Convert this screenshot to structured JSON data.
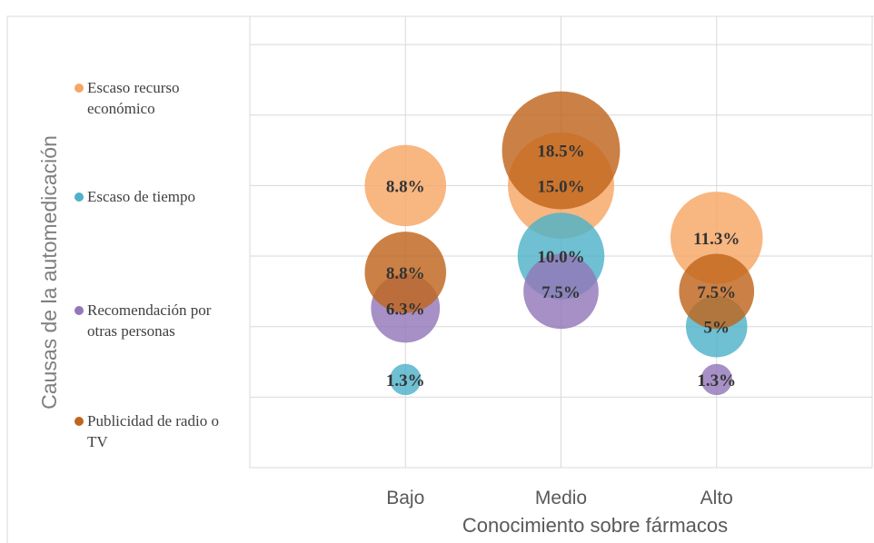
{
  "chart_data": {
    "type": "bubble",
    "x_label": "Conocimiento sobre fármacos",
    "y_label": "Causas de la automedicación",
    "categories": [
      "Bajo",
      "Medio",
      "Alto"
    ],
    "ylim": [
      0,
      6.4
    ],
    "yticks": [
      0,
      1,
      2,
      3,
      4,
      5,
      6
    ],
    "grid": true,
    "series": [
      {
        "name": "Escaso recurso económico",
        "color": "#f7a665",
        "y": [
          4,
          4,
          3.26
        ],
        "sizes": [
          8.8,
          15.0,
          11.3
        ],
        "value_labels": [
          "8.8%",
          "15.0%",
          "11.3%"
        ]
      },
      {
        "name": "Escaso de tiempo",
        "color": "#4eb2c8",
        "y": [
          1.25,
          3,
          2
        ],
        "sizes": [
          1.3,
          10.0,
          5
        ],
        "value_labels": [
          "1.3%",
          "10.0%",
          "5%"
        ]
      },
      {
        "name": "Recomendación por otras personas",
        "color": "#9378b8",
        "y": [
          2.26,
          2.5,
          1.25
        ],
        "sizes": [
          6.3,
          7.5,
          1.3
        ],
        "value_labels": [
          "6.3%",
          "7.5%",
          "1.3%"
        ]
      },
      {
        "name": "Publicidad de radio o TV",
        "color": "#c0651c",
        "y": [
          2.77,
          4.5,
          2.5
        ],
        "sizes": [
          8.8,
          18.5,
          7.5
        ],
        "value_labels": [
          "8.8%",
          "18.5%",
          "7.5%"
        ]
      }
    ]
  }
}
